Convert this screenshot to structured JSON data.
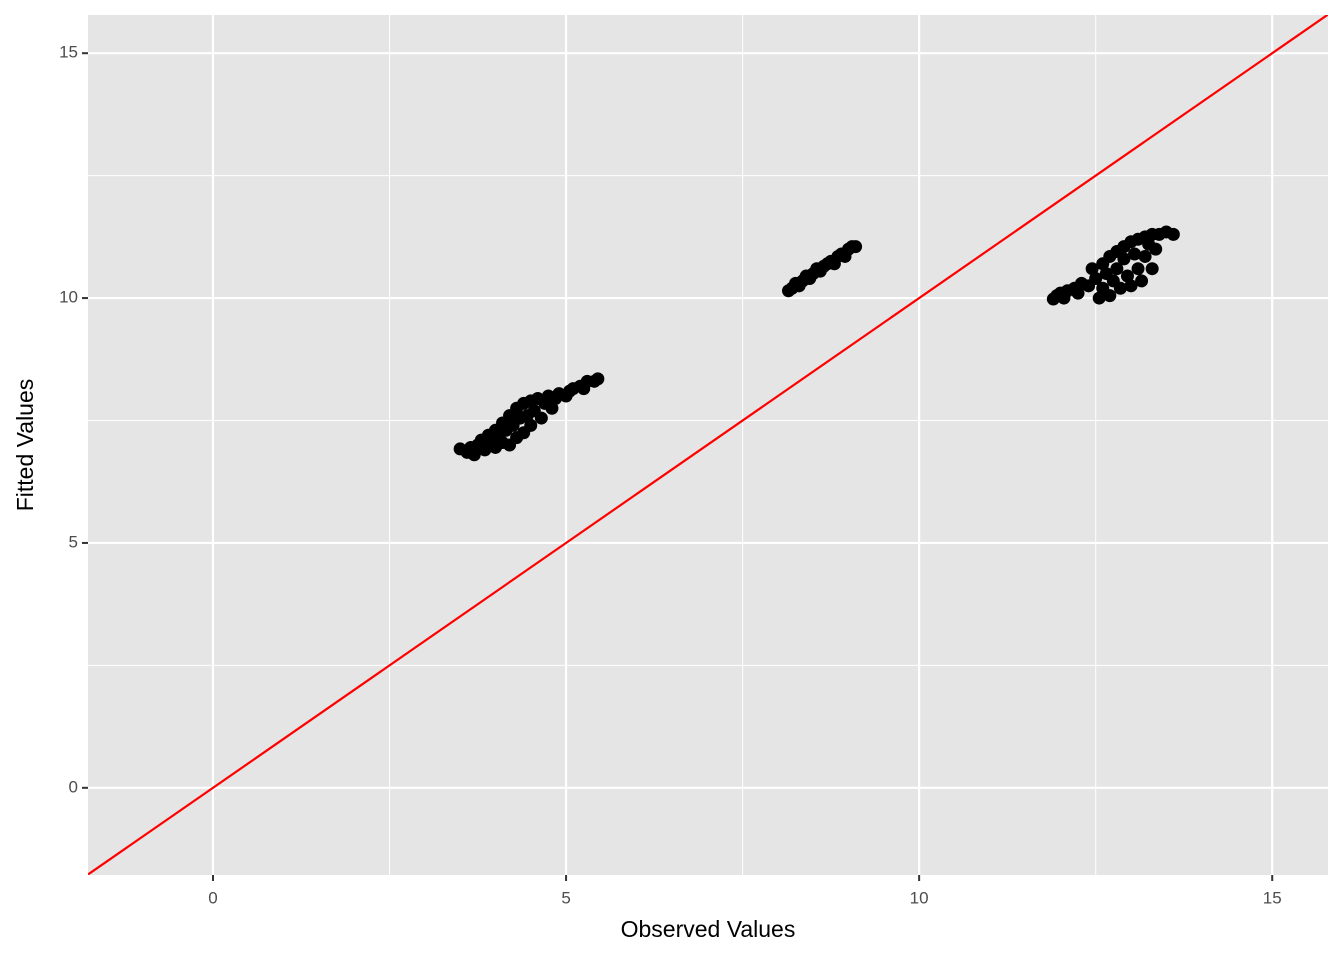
{
  "chart_data": {
    "type": "scatter",
    "xlabel": "Observed Values",
    "ylabel": "Fitted Values",
    "xlim": [
      -1.77,
      15.79
    ],
    "ylim": [
      -1.78,
      15.78
    ],
    "xticks": [
      0,
      5,
      10,
      15
    ],
    "yticks": [
      0,
      5,
      10,
      15
    ],
    "xminor": [
      2.5,
      7.5,
      12.5
    ],
    "yminor": [
      2.5,
      7.5,
      12.5
    ],
    "grid": true,
    "color": "#000000",
    "abline": {
      "slope": 1,
      "intercept": 0,
      "color": "#ff0000"
    },
    "x": [
      3.5,
      3.6,
      3.65,
      3.7,
      3.75,
      3.8,
      3.85,
      3.9,
      3.95,
      4.0,
      4.0,
      4.05,
      4.1,
      4.1,
      4.15,
      4.2,
      4.2,
      4.25,
      4.3,
      4.3,
      4.35,
      4.4,
      4.4,
      4.45,
      4.5,
      4.5,
      4.55,
      4.6,
      4.65,
      4.7,
      4.75,
      4.8,
      4.85,
      4.9,
      5.0,
      5.05,
      5.1,
      5.2,
      5.25,
      5.3,
      5.4,
      5.45,
      8.15,
      8.2,
      8.25,
      8.3,
      8.35,
      8.4,
      8.45,
      8.5,
      8.55,
      8.6,
      8.65,
      8.7,
      8.75,
      8.8,
      8.85,
      8.9,
      8.95,
      9.0,
      9.05,
      9.1,
      11.9,
      11.95,
      12.0,
      12.05,
      12.1,
      12.2,
      12.25,
      12.3,
      12.4,
      12.45,
      12.5,
      12.55,
      12.6,
      12.6,
      12.65,
      12.7,
      12.7,
      12.75,
      12.8,
      12.8,
      12.85,
      12.9,
      12.9,
      12.95,
      13.0,
      13.0,
      13.05,
      13.1,
      13.1,
      13.15,
      13.2,
      13.2,
      13.25,
      13.3,
      13.3,
      13.35,
      13.4,
      13.5,
      13.6
    ],
    "values": [
      6.92,
      6.85,
      6.95,
      6.8,
      7.0,
      7.1,
      6.9,
      7.2,
      7.0,
      7.3,
      6.95,
      7.15,
      7.45,
      7.05,
      7.3,
      7.6,
      7.0,
      7.4,
      7.75,
      7.15,
      7.55,
      7.85,
      7.25,
      7.6,
      7.9,
      7.4,
      7.7,
      7.95,
      7.55,
      7.85,
      8.0,
      7.75,
      7.95,
      8.05,
      8.0,
      8.1,
      8.15,
      8.2,
      8.15,
      8.3,
      8.3,
      8.35,
      10.15,
      10.2,
      10.3,
      10.25,
      10.35,
      10.45,
      10.4,
      10.5,
      10.6,
      10.55,
      10.65,
      10.7,
      10.75,
      10.7,
      10.85,
      10.9,
      10.85,
      11.0,
      11.05,
      11.05,
      9.98,
      10.05,
      10.1,
      10.0,
      10.15,
      10.2,
      10.1,
      10.3,
      10.25,
      10.6,
      10.4,
      10.0,
      10.7,
      10.2,
      10.5,
      10.85,
      10.05,
      10.35,
      10.95,
      10.6,
      10.2,
      11.05,
      10.8,
      10.45,
      11.15,
      10.25,
      10.9,
      11.2,
      10.6,
      10.35,
      11.25,
      10.85,
      11.1,
      11.3,
      10.6,
      11.0,
      11.3,
      11.35,
      11.3
    ]
  }
}
